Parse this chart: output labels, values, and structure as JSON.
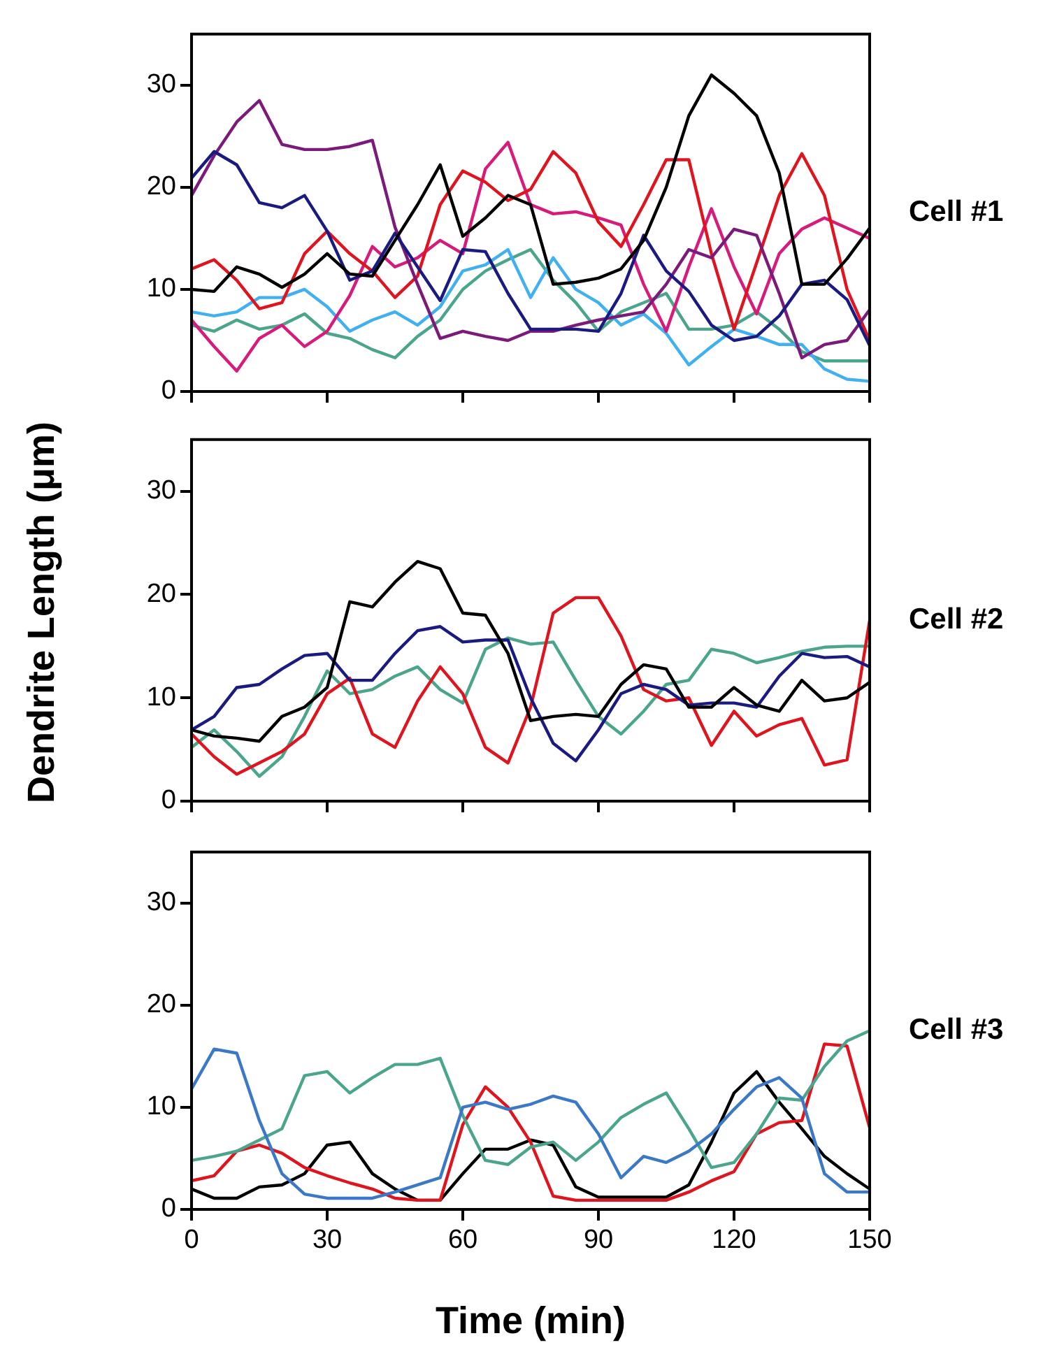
{
  "chart_data": [
    {
      "type": "line",
      "annotations": [
        "Cell #1"
      ],
      "x": [
        0,
        5,
        10,
        15,
        20,
        25,
        30,
        35,
        40,
        45,
        50,
        55,
        60,
        65,
        70,
        75,
        80,
        85,
        90,
        95,
        100,
        105,
        110,
        115,
        120,
        125,
        130,
        135,
        140,
        145,
        150
      ],
      "xlim": [
        0,
        150
      ],
      "xticks": [
        0,
        30,
        60,
        90,
        120,
        150
      ],
      "ylim": [
        0,
        35
      ],
      "yticks": [
        0,
        10,
        20,
        30
      ],
      "tick_labels": "y",
      "grid": false,
      "legend": false,
      "marker": "none",
      "line_style": "solid",
      "series": [
        {
          "color": "#000000",
          "values": [
            10,
            9.8,
            12.2,
            11.5,
            10.2,
            11.5,
            13.5,
            11.5,
            11.3,
            14.8,
            18.3,
            22.2,
            15.2,
            17,
            19.2,
            18.3,
            10.5,
            10.7,
            11.1,
            12,
            14.8,
            20,
            27,
            31,
            29.2,
            27,
            21.4,
            10.5,
            10.5,
            13,
            16
          ]
        },
        {
          "color": "#1a1a80",
          "values": [
            20.9,
            23.5,
            22.2,
            18.5,
            18,
            19.2,
            15.7,
            10.9,
            11.8,
            15.5,
            12.2,
            8.9,
            13.9,
            13.7,
            9.6,
            6.1,
            6.1,
            6.1,
            5.9,
            9.6,
            15.3,
            11.8,
            9.8,
            6.5,
            5,
            5.4,
            7.4,
            10.5,
            10.9,
            9,
            4.5
          ]
        },
        {
          "color": "#7b1a7b",
          "values": [
            19.2,
            23.1,
            26.4,
            28.5,
            24.2,
            23.7,
            23.7,
            24,
            24.6,
            16.1,
            10.5,
            5.2,
            5.9,
            5.4,
            5,
            5.9,
            5.9,
            6.5,
            7,
            7.4,
            7.8,
            10.5,
            13.9,
            13.1,
            15.9,
            15.3,
            9.6,
            3.3,
            4.6,
            5,
            8
          ]
        },
        {
          "color": "#e0141e",
          "values": [
            12,
            12.9,
            10.9,
            8.1,
            8.7,
            13.5,
            15.7,
            13.5,
            11.8,
            9.2,
            11.3,
            18.3,
            21.6,
            20.5,
            18.7,
            19.8,
            23.5,
            21.4,
            16.6,
            14.2,
            18.3,
            22.7,
            22.7,
            13.5,
            6.1,
            12.6,
            19.2,
            23.3,
            19.2,
            10,
            5
          ]
        },
        {
          "color": "#d81b7a",
          "values": [
            7,
            4.4,
            2,
            5.2,
            6.5,
            4.4,
            5.9,
            9.4,
            14.2,
            12.2,
            13.1,
            14.8,
            13.5,
            21.8,
            24.4,
            18.3,
            17.4,
            17.6,
            17,
            16.3,
            10.5,
            5.9,
            12.2,
            17.9,
            12.2,
            7.6,
            13.5,
            15.9,
            17,
            16,
            15
          ]
        },
        {
          "color": "#40b0f0",
          "values": [
            7.8,
            7.4,
            7.8,
            9.2,
            9.2,
            10,
            8.3,
            5.9,
            7,
            7.8,
            6.5,
            8.3,
            11.8,
            12.4,
            13.9,
            9.2,
            13.1,
            10,
            8.7,
            6.5,
            7.6,
            5.7,
            2.6,
            4.4,
            6.1,
            5.4,
            4.6,
            4.6,
            2.2,
            1.2,
            1
          ]
        },
        {
          "color": "#4aa58c",
          "values": [
            6.5,
            5.9,
            7,
            6.1,
            6.5,
            7.6,
            5.7,
            5.2,
            4.1,
            3.3,
            5.4,
            7,
            10,
            11.8,
            12.9,
            13.9,
            10.9,
            8.7,
            5.9,
            7.8,
            8.7,
            9.6,
            6.1,
            6.1,
            6.5,
            7.8,
            6.1,
            3.9,
            3,
            3,
            3
          ]
        }
      ]
    },
    {
      "type": "line",
      "annotations": [
        "Cell #2"
      ],
      "ylabel": "Dendrite Length (μm)",
      "x": [
        0,
        5,
        10,
        15,
        20,
        25,
        30,
        35,
        40,
        45,
        50,
        55,
        60,
        65,
        70,
        75,
        80,
        85,
        90,
        95,
        100,
        105,
        110,
        115,
        120,
        125,
        130,
        135,
        140,
        145,
        150
      ],
      "xlim": [
        0,
        150
      ],
      "xticks": [
        0,
        30,
        60,
        90,
        120,
        150
      ],
      "ylim": [
        0,
        35
      ],
      "yticks": [
        0,
        10,
        20,
        30
      ],
      "tick_labels": "y",
      "grid": false,
      "legend": false,
      "marker": "none",
      "line_style": "solid",
      "series": [
        {
          "color": "#000000",
          "values": [
            6.9,
            6.3,
            6.1,
            5.8,
            8.2,
            9.1,
            11,
            19.3,
            18.8,
            21.2,
            23.2,
            22.5,
            18.2,
            18,
            14.3,
            7.8,
            8.2,
            8.4,
            8.2,
            11.3,
            13.2,
            12.8,
            9.1,
            9.1,
            11,
            9.3,
            8.7,
            11.7,
            9.7,
            10,
            11.5
          ]
        },
        {
          "color": "#1a1a80",
          "values": [
            6.9,
            8.2,
            11,
            11.3,
            12.8,
            14.1,
            14.3,
            11.7,
            11.7,
            14.3,
            16.5,
            16.9,
            15.4,
            15.6,
            15.6,
            10,
            5.6,
            3.9,
            6.9,
            10.4,
            11.3,
            10.8,
            9.3,
            9.5,
            9.5,
            9.1,
            12.1,
            14.3,
            13.9,
            14,
            13
          ]
        },
        {
          "color": "#e0141e",
          "values": [
            6.5,
            4.3,
            2.6,
            3.7,
            4.8,
            6.5,
            10.4,
            11.9,
            6.5,
            5.2,
            9.7,
            13,
            10.4,
            5.2,
            3.7,
            9.1,
            18.2,
            19.7,
            19.7,
            16,
            10.8,
            9.7,
            10,
            5.4,
            8.7,
            6.3,
            7.4,
            8,
            3.5,
            4,
            17.5
          ]
        },
        {
          "color": "#4aa58c",
          "values": [
            5.2,
            6.9,
            4.8,
            2.4,
            4.3,
            8.2,
            12.6,
            10.4,
            10.8,
            12.1,
            13,
            10.8,
            9.5,
            14.7,
            15.8,
            15.2,
            15.4,
            11.7,
            8.2,
            6.5,
            8.7,
            11.3,
            11.7,
            14.7,
            14.3,
            13.4,
            13.9,
            14.5,
            14.9,
            15,
            15
          ]
        }
      ]
    },
    {
      "type": "line",
      "annotations": [
        "Cell #3"
      ],
      "xlabel": "Time (min)",
      "x": [
        0,
        5,
        10,
        15,
        20,
        25,
        30,
        35,
        40,
        45,
        50,
        55,
        60,
        65,
        70,
        75,
        80,
        85,
        90,
        95,
        100,
        105,
        110,
        115,
        120,
        125,
        130,
        135,
        140,
        145,
        150
      ],
      "xlim": [
        0,
        150
      ],
      "xticks": [
        0,
        30,
        60,
        90,
        120,
        150
      ],
      "ylim": [
        0,
        35
      ],
      "yticks": [
        0,
        10,
        20,
        30
      ],
      "grid": false,
      "legend": false,
      "marker": "none",
      "line_style": "solid",
      "series": [
        {
          "color": "#3b78c6",
          "values": [
            11.8,
            15.7,
            15.3,
            8.7,
            3.5,
            1.5,
            1.1,
            1.1,
            1.1,
            1.7,
            2.4,
            3.1,
            10,
            10.5,
            9.8,
            10.3,
            11.1,
            10.5,
            7.4,
            3.1,
            5.2,
            4.6,
            5.7,
            7.4,
            9.8,
            12,
            12.9,
            10.9,
            3.5,
            1.7,
            1.7
          ]
        },
        {
          "color": "#4aa58c",
          "values": [
            4.8,
            5.2,
            5.7,
            6.8,
            7.9,
            13.1,
            13.5,
            11.4,
            12.9,
            14.2,
            14.2,
            14.8,
            9.2,
            4.8,
            4.4,
            6.1,
            6.6,
            4.8,
            6.6,
            9,
            10.3,
            11.4,
            7.9,
            4.1,
            4.6,
            7.4,
            10.9,
            10.7,
            14,
            16.5,
            17.5
          ]
        },
        {
          "color": "#e0141e",
          "values": [
            2.8,
            3.3,
            5.7,
            6.3,
            5.5,
            4.1,
            3.3,
            2.6,
            2,
            1.1,
            0.9,
            0.9,
            8.3,
            12,
            10,
            6.6,
            1.3,
            0.9,
            0.9,
            0.9,
            0.9,
            0.9,
            1.7,
            2.8,
            3.7,
            7.4,
            8.5,
            8.7,
            16.2,
            16,
            8
          ]
        },
        {
          "color": "#000000",
          "values": [
            2,
            1.1,
            1.1,
            2.2,
            2.4,
            3.5,
            6.3,
            6.6,
            3.5,
            2,
            0.9,
            0.9,
            3.5,
            5.9,
            5.9,
            6.8,
            6.3,
            2.2,
            1.2,
            1.2,
            1.2,
            1.2,
            2.4,
            6.6,
            11.4,
            13.5,
            10.5,
            7.9,
            5.2,
            3.5,
            2
          ]
        }
      ]
    }
  ]
}
